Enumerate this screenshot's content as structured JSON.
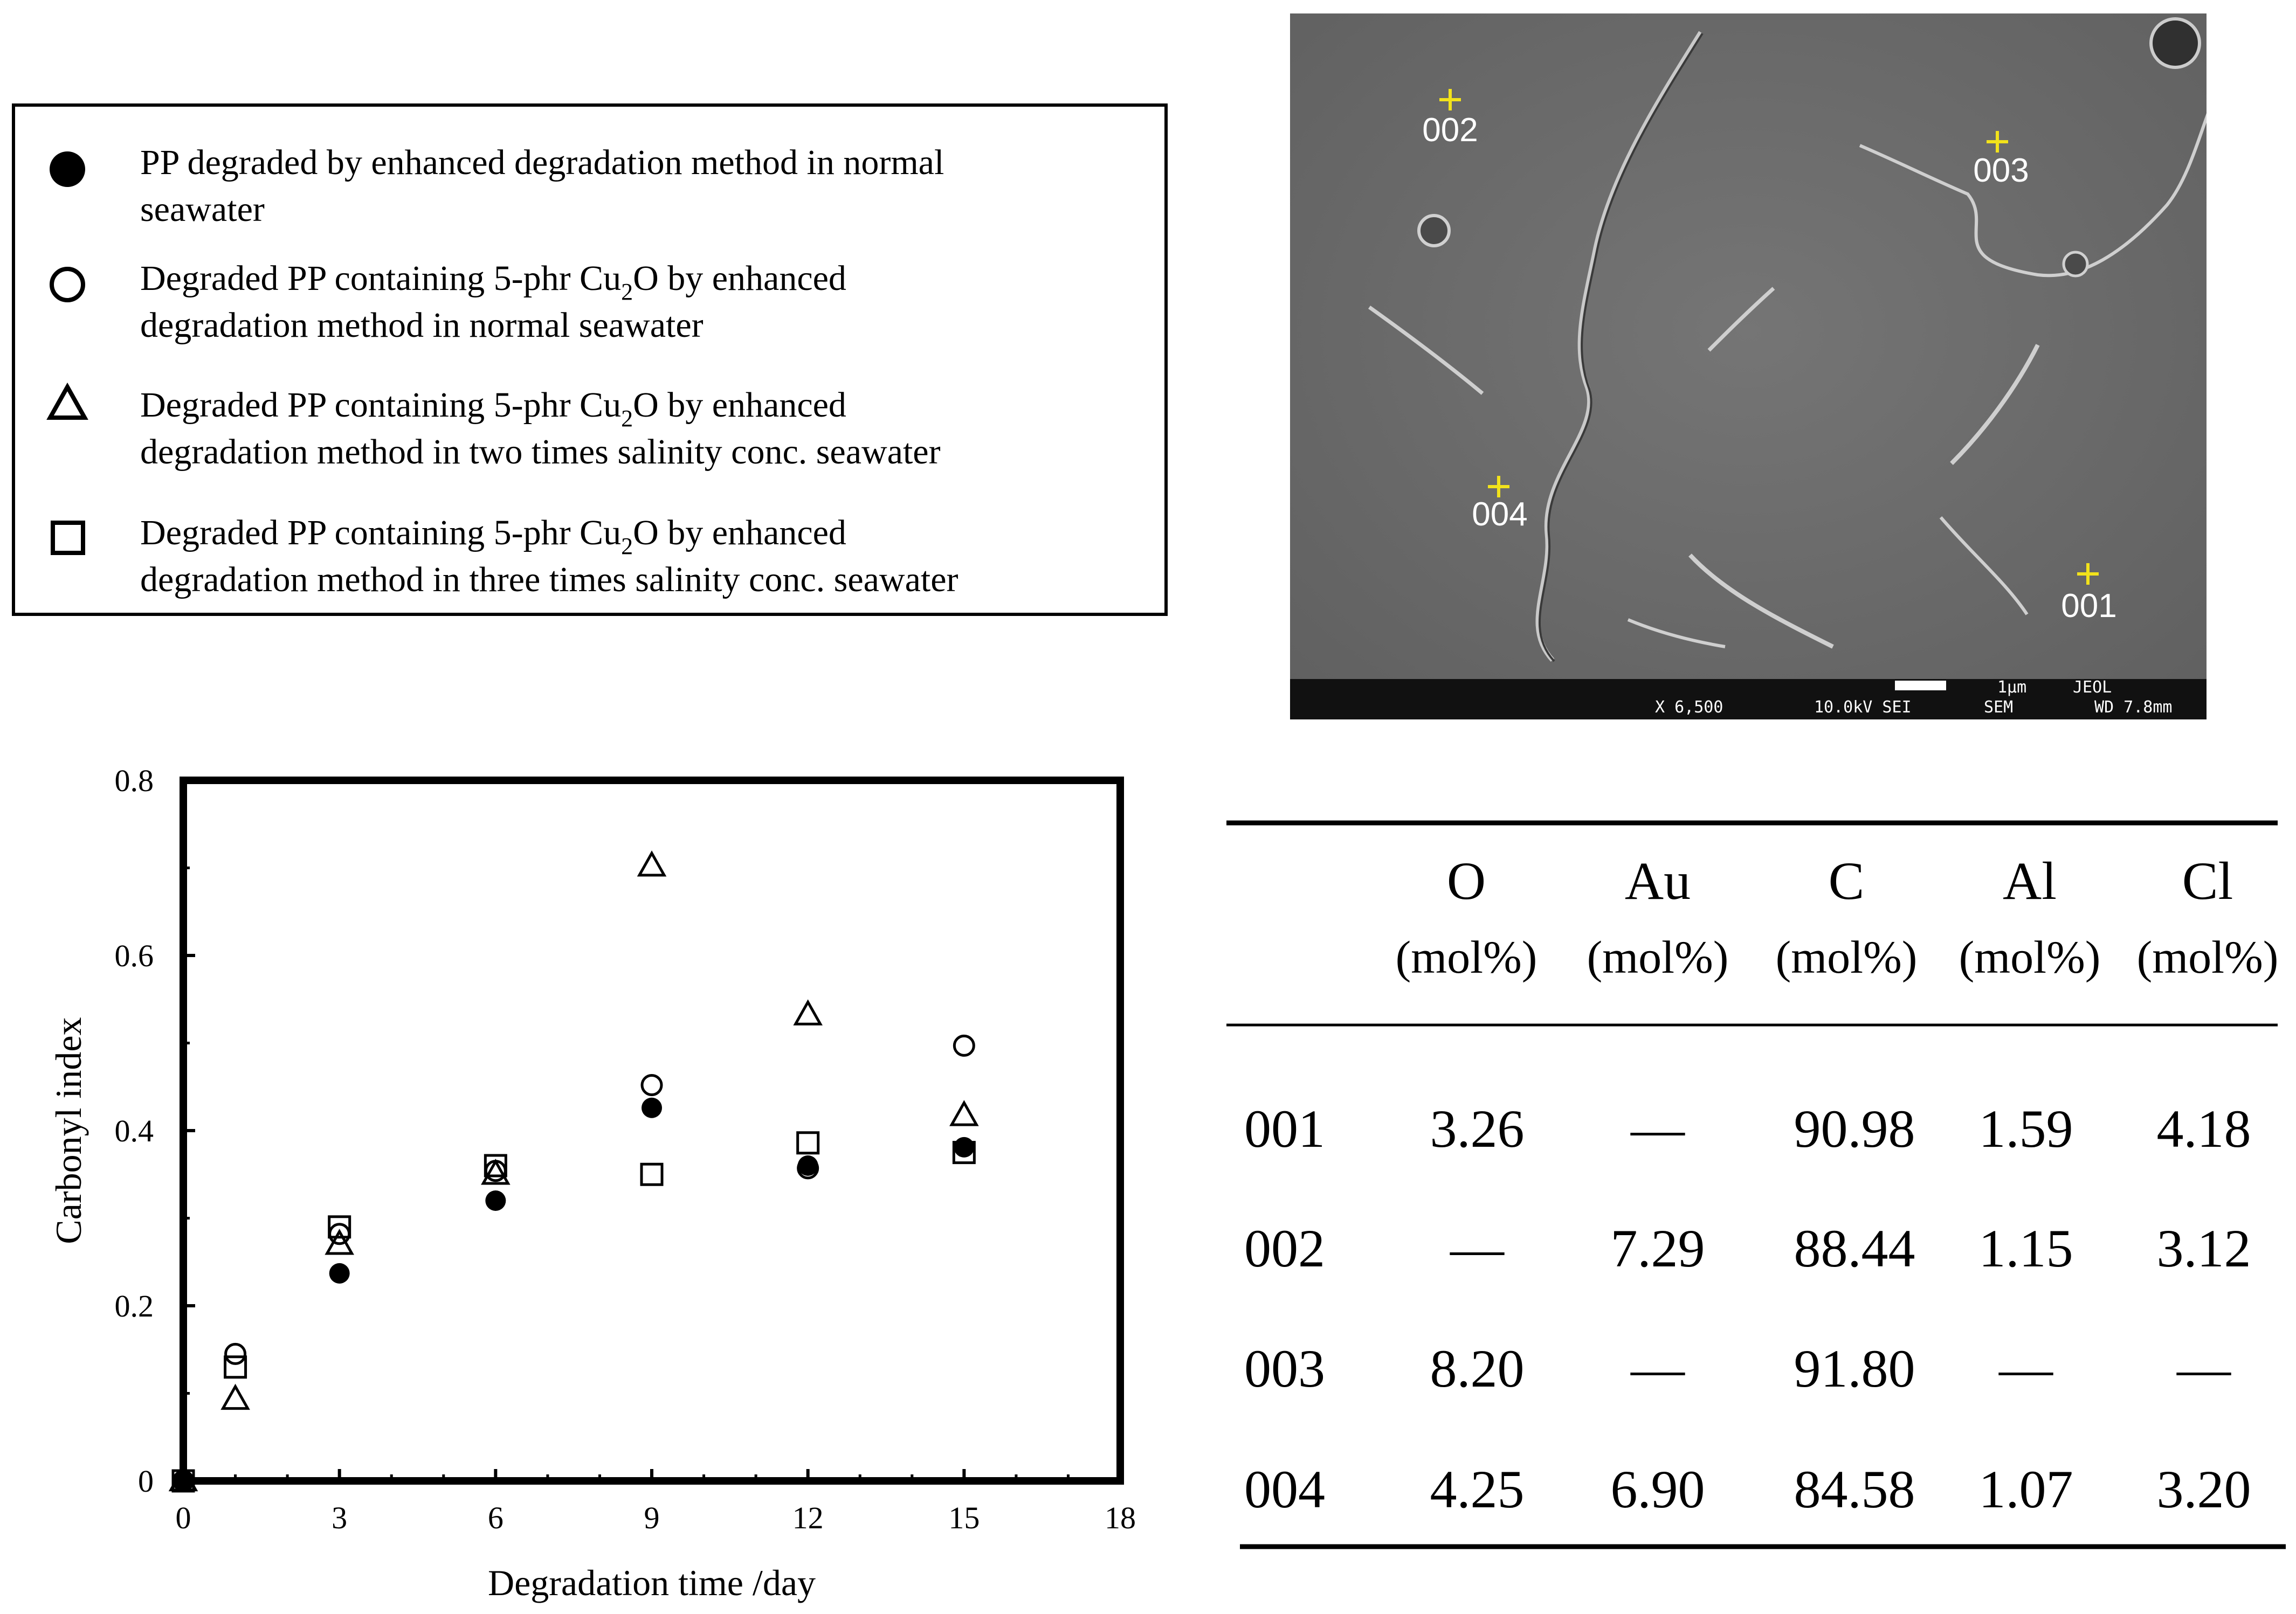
{
  "legend": {
    "items": [
      {
        "marker": "filled-circle",
        "line1": "PP degraded by enhanced degradation method  in normal",
        "line2": "seawater"
      },
      {
        "marker": "open-circle",
        "line1_pre": "Degraded PP containing 5-phr Cu",
        "line1_sub": "2",
        "line1_post": "O by enhanced",
        "line2": "degradation method in normal seawater"
      },
      {
        "marker": "open-triangle",
        "line1_pre": "Degraded PP containing 5-phr Cu",
        "line1_sub": "2",
        "line1_post": "O  by enhanced",
        "line2": "degradation method in two times salinity conc. seawater"
      },
      {
        "marker": "open-square",
        "line1_pre": "Degraded PP containing 5-phr Cu",
        "line1_sub": "2",
        "line1_post": "O  by enhanced",
        "line2": "degradation method in three times salinity conc. seawater"
      }
    ]
  },
  "sem": {
    "points": [
      "001",
      "002",
      "003",
      "004"
    ],
    "bar": {
      "magnification": "X 6,500",
      "voltage": "10.0kV SEI",
      "mode": "SEM",
      "scale": "1µm",
      "brand": "JEOL",
      "wd": "WD 7.8mm"
    },
    "colors": {
      "background": "#6b6b6b",
      "marker": "#f2e21b",
      "bar": "#111111"
    }
  },
  "chart_data": {
    "type": "scatter",
    "xlabel": "Degradation time /day",
    "ylabel": "Carbonyl index",
    "xlim": [
      0,
      18
    ],
    "ylim": [
      0,
      0.8
    ],
    "xticks": [
      "0",
      "3",
      "6",
      "9",
      "12",
      "15",
      "18"
    ],
    "yticks": [
      "0",
      "0.2",
      "0.4",
      "0.6",
      "0.8"
    ],
    "grid": false,
    "series": [
      {
        "marker": "filled-circle",
        "x": [
          0,
          3,
          6,
          9,
          12,
          15
        ],
        "y": [
          0,
          0.237,
          0.32,
          0.426,
          0.36,
          0.381
        ]
      },
      {
        "marker": "open-circle",
        "x": [
          0,
          1,
          3,
          6,
          9,
          12,
          15
        ],
        "y": [
          0,
          0.145,
          0.282,
          0.354,
          0.452,
          0.357,
          0.497
        ]
      },
      {
        "marker": "open-triangle",
        "x": [
          0,
          1,
          3,
          6,
          9,
          12,
          15
        ],
        "y": [
          0,
          0.093,
          0.27,
          0.35,
          0.702,
          0.532,
          0.417
        ]
      },
      {
        "marker": "open-square",
        "x": [
          0,
          1,
          3,
          6,
          9,
          12,
          15
        ],
        "y": [
          0,
          0.13,
          0.29,
          0.36,
          0.35,
          0.386,
          0.375
        ]
      }
    ]
  },
  "table": {
    "columns": [
      {
        "name": "O",
        "unit": "(mol%)"
      },
      {
        "name": "Au",
        "unit": "(mol%)"
      },
      {
        "name": "C",
        "unit": "(mol%)"
      },
      {
        "name": "Al",
        "unit": "(mol%)"
      },
      {
        "name": "Cl",
        "unit": "(mol%)"
      }
    ],
    "rows": [
      {
        "id": "001",
        "values": [
          "3.26",
          "—",
          "90.98",
          "1.59",
          "4.18"
        ]
      },
      {
        "id": "002",
        "values": [
          "—",
          "7.29",
          "88.44",
          "1.15",
          "3.12"
        ]
      },
      {
        "id": "003",
        "values": [
          "8.20",
          "—",
          "91.80",
          "—",
          "—"
        ]
      },
      {
        "id": "004",
        "values": [
          "4.25",
          "6.90",
          "84.58",
          "1.07",
          "3.20"
        ]
      }
    ]
  }
}
